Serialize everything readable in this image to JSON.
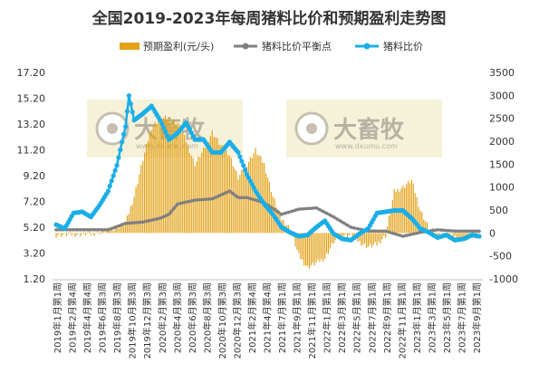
{
  "chart_data": {
    "type": "bar+line",
    "title": "全国2019-2023年每周猪料比价和预期盈利走势图",
    "legend": [
      "预期盈利(元/头)",
      "猪料比价平衡点",
      "猪料比价"
    ],
    "legend_position": "top",
    "grid": false,
    "y_left": {
      "min": 1.2,
      "max": 17.2,
      "ticks": [
        "17.20",
        "15.20",
        "13.20",
        "11.20",
        "9.20",
        "7.20",
        "5.20",
        "3.20",
        "1.20"
      ]
    },
    "y_right": {
      "min": -1000,
      "max": 3500,
      "ticks": [
        "3500",
        "3000",
        "2500",
        "2000",
        "1500",
        "1000",
        "500",
        "0",
        "-500",
        "-1000"
      ]
    },
    "x_ticks": [
      "2019年1月第1周",
      "2019年2月第4周",
      "2019年4月第4周",
      "2019年6月第3周",
      "2019年8月第3周",
      "2019年10月第3周",
      "2019年12月第3周",
      "2020年2月第3周",
      "2020年4月第3周",
      "2020年6月第3周",
      "2020年8月第3周",
      "2020年10月第3周",
      "2020年12月第3周",
      "2021年2月第4周",
      "2021年4月第4周",
      "2021年7月第1周",
      "2021年9月第1周",
      "2021年11月第1周",
      "2022年1月第1周",
      "2022年3月第1周",
      "2022年5月第1周",
      "2022年7月第1周",
      "2022年9月第1周",
      "2022年11月第1周",
      "2023年1月第1周",
      "2023年3月第1周",
      "2023年5月第1周",
      "2023年7月第1周",
      "2023年9月第1周"
    ],
    "weeks": 245,
    "profit_anchors": [
      [
        0,
        -40
      ],
      [
        10,
        -30
      ],
      [
        20,
        -20
      ],
      [
        30,
        60
      ],
      [
        40,
        200
      ],
      [
        45,
        800
      ],
      [
        50,
        1600
      ],
      [
        55,
        2300
      ],
      [
        60,
        2500
      ],
      [
        65,
        2500
      ],
      [
        70,
        2400
      ],
      [
        75,
        2000
      ],
      [
        80,
        1500
      ],
      [
        85,
        1800
      ],
      [
        90,
        2200
      ],
      [
        95,
        1900
      ],
      [
        100,
        1700
      ],
      [
        105,
        1200
      ],
      [
        110,
        1500
      ],
      [
        115,
        1800
      ],
      [
        120,
        1500
      ],
      [
        125,
        800
      ],
      [
        130,
        300
      ],
      [
        135,
        100
      ],
      [
        140,
        -500
      ],
      [
        145,
        -750
      ],
      [
        150,
        -650
      ],
      [
        155,
        -550
      ],
      [
        160,
        -200
      ],
      [
        165,
        -50
      ],
      [
        170,
        -50
      ],
      [
        175,
        -200
      ],
      [
        180,
        -300
      ],
      [
        185,
        -250
      ],
      [
        190,
        -50
      ],
      [
        195,
        900
      ],
      [
        200,
        1000
      ],
      [
        205,
        1150
      ],
      [
        210,
        500
      ],
      [
        215,
        100
      ],
      [
        220,
        -30
      ],
      [
        225,
        -50
      ],
      [
        230,
        -80
      ],
      [
        235,
        -150
      ],
      [
        240,
        -80
      ],
      [
        244,
        -40
      ]
    ],
    "breakeven_anchors": [
      [
        0,
        5.0
      ],
      [
        20,
        5.0
      ],
      [
        30,
        5.0
      ],
      [
        40,
        5.5
      ],
      [
        50,
        5.6
      ],
      [
        60,
        5.9
      ],
      [
        65,
        6.2
      ],
      [
        70,
        7.0
      ],
      [
        80,
        7.3
      ],
      [
        90,
        7.4
      ],
      [
        100,
        8.0
      ],
      [
        105,
        7.5
      ],
      [
        110,
        7.5
      ],
      [
        120,
        7.1
      ],
      [
        130,
        6.2
      ],
      [
        140,
        6.6
      ],
      [
        150,
        6.7
      ],
      [
        160,
        6.0
      ],
      [
        170,
        5.2
      ],
      [
        180,
        4.9
      ],
      [
        190,
        4.9
      ],
      [
        200,
        4.5
      ],
      [
        210,
        4.8
      ],
      [
        220,
        5.0
      ],
      [
        230,
        4.9
      ],
      [
        244,
        4.9
      ]
    ],
    "ratio_anchors": [
      [
        0,
        5.4
      ],
      [
        5,
        5.1
      ],
      [
        10,
        6.3
      ],
      [
        15,
        6.4
      ],
      [
        20,
        6.0
      ],
      [
        25,
        6.9
      ],
      [
        30,
        8.0
      ],
      [
        35,
        10.0
      ],
      [
        40,
        13.0
      ],
      [
        42,
        15.4
      ],
      [
        45,
        13.5
      ],
      [
        50,
        14.0
      ],
      [
        55,
        14.6
      ],
      [
        60,
        13.5
      ],
      [
        65,
        12.0
      ],
      [
        70,
        12.5
      ],
      [
        75,
        13.3
      ],
      [
        80,
        12.0
      ],
      [
        85,
        12.0
      ],
      [
        90,
        11.0
      ],
      [
        95,
        11.0
      ],
      [
        100,
        11.8
      ],
      [
        105,
        11.0
      ],
      [
        110,
        9.3
      ],
      [
        115,
        8.0
      ],
      [
        120,
        7.0
      ],
      [
        125,
        6.2
      ],
      [
        130,
        5.2
      ],
      [
        135,
        4.8
      ],
      [
        140,
        4.5
      ],
      [
        145,
        4.6
      ],
      [
        150,
        5.2
      ],
      [
        155,
        5.7
      ],
      [
        160,
        4.7
      ],
      [
        165,
        4.3
      ],
      [
        170,
        4.2
      ],
      [
        175,
        4.7
      ],
      [
        180,
        5.1
      ],
      [
        185,
        6.3
      ],
      [
        190,
        6.4
      ],
      [
        195,
        6.5
      ],
      [
        200,
        6.5
      ],
      [
        205,
        5.9
      ],
      [
        210,
        5.1
      ],
      [
        215,
        4.8
      ],
      [
        220,
        4.4
      ],
      [
        225,
        4.6
      ],
      [
        230,
        4.2
      ],
      [
        235,
        4.3
      ],
      [
        240,
        4.6
      ],
      [
        244,
        4.5
      ]
    ]
  }
}
